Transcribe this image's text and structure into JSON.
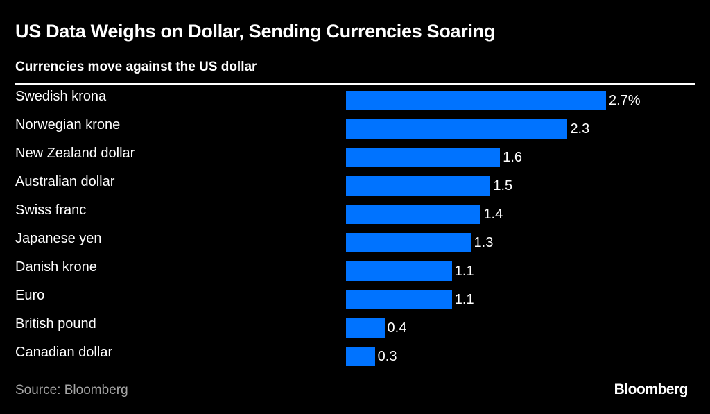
{
  "chart_data": {
    "type": "bar",
    "orientation": "horizontal",
    "title": "US Data Weighs on Dollar, Sending Currencies Soaring",
    "subtitle": "Currencies move against the US dollar",
    "categories": [
      "Swedish krona",
      "Norwegian krone",
      "New Zealand dollar",
      "Australian dollar",
      "Swiss franc",
      "Japanese yen",
      "Danish krone",
      "Euro",
      "British pound",
      "Canadian dollar"
    ],
    "values": [
      2.7,
      2.3,
      1.6,
      1.5,
      1.4,
      1.3,
      1.1,
      1.1,
      0.4,
      0.3
    ],
    "data_labels": [
      "2.7%",
      "2.3",
      "1.6",
      "1.5",
      "1.4",
      "1.3",
      "1.1",
      "1.1",
      "0.4",
      "0.3"
    ],
    "unit": "%",
    "xlim": [
      0,
      2.7
    ],
    "grid": false,
    "bar_color": "#0073ff",
    "background": "#000000"
  },
  "source": "Source: Bloomberg",
  "logo": "Bloomberg"
}
